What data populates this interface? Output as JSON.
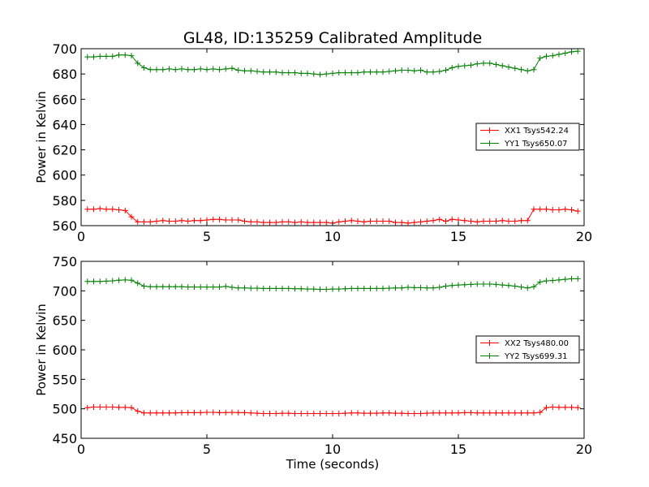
{
  "title": "GL48, ID:135259 Calibrated Amplitude",
  "colors": {
    "red": "#ff0000",
    "green": "#008000"
  },
  "chart_data": [
    {
      "type": "line",
      "title": "GL48, ID:135259 Calibrated Amplitude",
      "xlabel": "",
      "ylabel": "Power in Kelvin",
      "xlim": [
        0,
        20
      ],
      "ylim": [
        560,
        700
      ],
      "xticks": [
        "0",
        "5",
        "10",
        "15",
        "20"
      ],
      "yticks": [
        "560",
        "580",
        "600",
        "620",
        "640",
        "660",
        "680",
        "700"
      ],
      "grid": false,
      "legend_position": "center-right",
      "legend": [
        "XX1 Tsys542.24",
        "YY1 Tsys650.07"
      ],
      "x": [
        0.25,
        0.5,
        0.75,
        1.0,
        1.25,
        1.5,
        1.75,
        2.0,
        2.25,
        2.5,
        2.75,
        3.0,
        3.25,
        3.5,
        3.75,
        4.0,
        4.25,
        4.5,
        4.75,
        5.0,
        5.25,
        5.5,
        5.75,
        6.0,
        6.25,
        6.5,
        6.75,
        7.0,
        7.25,
        7.5,
        7.75,
        8.0,
        8.25,
        8.5,
        8.75,
        9.0,
        9.25,
        9.5,
        9.75,
        10.0,
        10.25,
        10.5,
        10.75,
        11.0,
        11.25,
        11.5,
        11.75,
        12.0,
        12.25,
        12.5,
        12.75,
        13.0,
        13.25,
        13.5,
        13.75,
        14.0,
        14.25,
        14.5,
        14.75,
        15.0,
        15.25,
        15.5,
        15.75,
        16.0,
        16.25,
        16.5,
        16.75,
        17.0,
        17.25,
        17.5,
        17.75,
        18.0,
        18.25,
        18.5,
        18.75,
        19.0,
        19.25,
        19.5,
        19.75
      ],
      "series": [
        {
          "name": "XX1 Tsys542.24",
          "color": "#ff0000",
          "values": [
            573,
            573,
            573.5,
            573,
            573,
            572.5,
            572,
            567,
            563,
            563,
            563,
            563.5,
            564,
            563.5,
            563.5,
            564,
            563.5,
            564,
            564,
            564.5,
            565,
            565,
            564.5,
            564.5,
            564.5,
            563.5,
            563,
            563,
            562.5,
            562.5,
            562.5,
            563,
            563,
            562.5,
            563,
            562.5,
            562.5,
            562.5,
            562.5,
            562,
            563,
            563.5,
            564,
            563.5,
            563,
            563.5,
            563.5,
            563.5,
            563.5,
            562.5,
            562.5,
            562,
            562.5,
            563,
            563.5,
            564,
            565,
            563.5,
            565,
            564.5,
            564,
            563.5,
            563,
            563.5,
            563.5,
            563.5,
            564,
            563.5,
            563.5,
            564,
            564,
            573,
            573,
            573,
            572.5,
            572.5,
            573,
            572.5,
            571.5
          ]
        },
        {
          "name": "YY1 Tsys650.07",
          "color": "#008000",
          "values": [
            693.5,
            693.5,
            694,
            694,
            694,
            695,
            695,
            694.5,
            688.5,
            685,
            683.5,
            683.5,
            683.5,
            684,
            683.5,
            684,
            683.5,
            683.5,
            684,
            683.5,
            684,
            683.5,
            684,
            684.5,
            683,
            682.5,
            682.5,
            682,
            681.5,
            681.5,
            681.5,
            681,
            681,
            681,
            680.5,
            680.5,
            680,
            679.5,
            680,
            680.5,
            681,
            681,
            681,
            681,
            681.5,
            681.5,
            681.5,
            681.5,
            682,
            682.5,
            683,
            683,
            682.5,
            683,
            681.5,
            681.5,
            682,
            683,
            685,
            686,
            686.5,
            687,
            688,
            688.5,
            688.5,
            687.5,
            686.5,
            685.5,
            684.5,
            683.5,
            682.5,
            683.5,
            692.5,
            694,
            694.5,
            695.5,
            696.5,
            697.5,
            698
          ]
        }
      ]
    },
    {
      "type": "line",
      "title": "",
      "xlabel": "Time (seconds)",
      "ylabel": "Power in Kelvin",
      "xlim": [
        0,
        20
      ],
      "ylim": [
        450,
        750
      ],
      "xticks": [
        "0",
        "5",
        "10",
        "15",
        "20"
      ],
      "yticks": [
        "450",
        "500",
        "550",
        "600",
        "650",
        "700",
        "750"
      ],
      "grid": false,
      "legend_position": "center-right",
      "legend": [
        "XX2 Tsys480.00",
        "YY2 Tsys699.31"
      ],
      "x": [
        0.25,
        0.5,
        0.75,
        1.0,
        1.25,
        1.5,
        1.75,
        2.0,
        2.25,
        2.5,
        2.75,
        3.0,
        3.25,
        3.5,
        3.75,
        4.0,
        4.25,
        4.5,
        4.75,
        5.0,
        5.25,
        5.5,
        5.75,
        6.0,
        6.25,
        6.5,
        6.75,
        7.0,
        7.25,
        7.5,
        7.75,
        8.0,
        8.25,
        8.5,
        8.75,
        9.0,
        9.25,
        9.5,
        9.75,
        10.0,
        10.25,
        10.5,
        10.75,
        11.0,
        11.25,
        11.5,
        11.75,
        12.0,
        12.25,
        12.5,
        12.75,
        13.0,
        13.25,
        13.5,
        13.75,
        14.0,
        14.25,
        14.5,
        14.75,
        15.0,
        15.25,
        15.5,
        15.75,
        16.0,
        16.25,
        16.5,
        16.75,
        17.0,
        17.25,
        17.5,
        17.75,
        18.0,
        18.25,
        18.5,
        18.75,
        19.0,
        19.25,
        19.5,
        19.75
      ],
      "series": [
        {
          "name": "XX2 Tsys480.00",
          "color": "#ff0000",
          "values": [
            502,
            503,
            503,
            503,
            503,
            502.5,
            502.5,
            502,
            496,
            493,
            493,
            493,
            493,
            493,
            493,
            493.5,
            493.5,
            493.5,
            493.5,
            494,
            494,
            493.5,
            493.5,
            494,
            493.5,
            493.5,
            493,
            492.5,
            492,
            492,
            492,
            492.5,
            492.5,
            492,
            492,
            492,
            492,
            492,
            492,
            492,
            492,
            492.5,
            493,
            493,
            492.5,
            492.5,
            492.5,
            493,
            493,
            492.5,
            492.5,
            492,
            492,
            492,
            492.5,
            493,
            493,
            493,
            493,
            493,
            493.5,
            493.5,
            493,
            493,
            493,
            493,
            493,
            493,
            493,
            493,
            493,
            493,
            494,
            502,
            503,
            502.5,
            502.5,
            502.5,
            502
          ]
        },
        {
          "name": "YY2 Tsys699.31",
          "color": "#008000",
          "values": [
            716,
            716,
            716,
            716.5,
            717,
            718,
            718.5,
            718,
            713,
            708,
            707,
            707,
            707,
            707,
            707,
            707,
            706.5,
            706.5,
            706.5,
            706.5,
            706.5,
            706.5,
            707.5,
            706,
            705,
            705,
            704.5,
            704.5,
            704,
            704,
            704,
            704,
            704,
            703.5,
            703.5,
            703,
            703,
            702.5,
            702.5,
            703,
            703,
            703.5,
            704,
            704,
            704,
            704,
            704,
            704,
            704.5,
            705,
            705,
            706,
            705.5,
            705.5,
            705,
            705,
            706,
            708,
            709,
            710,
            710.5,
            711,
            711.5,
            711.5,
            711.5,
            711,
            710,
            709,
            708,
            706.5,
            705,
            707,
            715,
            717,
            717.5,
            718.5,
            719.5,
            720.5,
            720.5
          ]
        }
      ]
    }
  ]
}
